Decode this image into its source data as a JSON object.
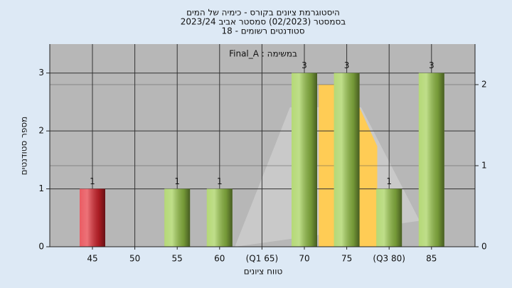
{
  "chart_data": {
    "type": "bar",
    "title": [
      "היסטוגרמת ציונים בקורס - כימיה של המים",
      "בסמסטר  (02/2023)  סמסטר אביב 2023/24",
      "סטודנטים רשומים - 18"
    ],
    "annotation": "Final_A : במשימה",
    "ylabel": "מספר סטודנטים",
    "xlabel": "טווח ציונים",
    "categories": [
      "45",
      "50",
      "55",
      "60",
      "(Q1 65)",
      "70",
      "75",
      "(Q3 80)",
      "85"
    ],
    "values": [
      1,
      0,
      1,
      1,
      0,
      3,
      3,
      1,
      3
    ],
    "colors": [
      "#e3262f",
      "#9ccc4a",
      "#9ccc4a",
      "#9ccc4a",
      "#9ccc4a",
      "#9ccc4a",
      "#9ccc4a",
      "#9ccc4a",
      "#9ccc4a"
    ],
    "ylim": [
      0,
      3.5
    ],
    "yticks": [
      0,
      1,
      2,
      3
    ],
    "y2lim": [
      0,
      2.5
    ],
    "y2ticks": [
      0,
      1,
      2
    ],
    "curve": {
      "x": [
        61.8,
        68.3,
        76.7,
        83.6
      ],
      "values": [
        0,
        1.72,
        1.72,
        0.32
      ],
      "color": "#c9c9c9"
    },
    "quartile_area": {
      "x": [
        71.7,
        71.7,
        74.5,
        76.5,
        78.6,
        78.6
      ],
      "values": [
        0,
        2,
        2,
        1.72,
        1.24,
        0
      ],
      "color": "#ffcc55"
    }
  }
}
